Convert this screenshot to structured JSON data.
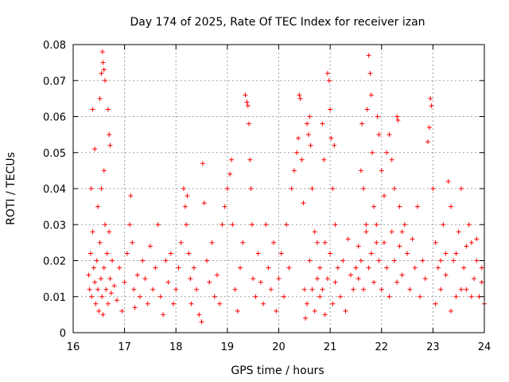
{
  "chart_data": {
    "type": "scatter",
    "title": "Day 174 of 2025, Rate Of TEC Index for receiver izan",
    "xlabel": "GPS time / hours",
    "ylabel": "ROTI / TECUs",
    "xlim": [
      16,
      24
    ],
    "ylim": [
      0,
      0.08
    ],
    "x_ticks": [
      "16",
      "17",
      "18",
      "19",
      "20",
      "21",
      "22",
      "23",
      "24"
    ],
    "y_ticks": [
      "0",
      "0.01",
      "0.02",
      "0.03",
      "0.04",
      "0.05",
      "0.06",
      "0.07",
      "0.08"
    ],
    "grid": true,
    "marker": "+",
    "color": "#ff0000",
    "points": [
      [
        16.35,
        0.04
      ],
      [
        16.38,
        0.062
      ],
      [
        16.42,
        0.051
      ],
      [
        16.48,
        0.035
      ],
      [
        16.52,
        0.065
      ],
      [
        16.55,
        0.072
      ],
      [
        16.57,
        0.078
      ],
      [
        16.58,
        0.075
      ],
      [
        16.6,
        0.073
      ],
      [
        16.62,
        0.07
      ],
      [
        16.68,
        0.062
      ],
      [
        16.7,
        0.055
      ],
      [
        16.72,
        0.052
      ],
      [
        16.55,
        0.04
      ],
      [
        16.6,
        0.045
      ],
      [
        16.3,
        0.016
      ],
      [
        16.32,
        0.012
      ],
      [
        16.34,
        0.022
      ],
      [
        16.36,
        0.01
      ],
      [
        16.38,
        0.028
      ],
      [
        16.4,
        0.018
      ],
      [
        16.42,
        0.014
      ],
      [
        16.44,
        0.008
      ],
      [
        16.46,
        0.02
      ],
      [
        16.48,
        0.012
      ],
      [
        16.5,
        0.006
      ],
      [
        16.52,
        0.025
      ],
      [
        16.54,
        0.015
      ],
      [
        16.56,
        0.01
      ],
      [
        16.58,
        0.005
      ],
      [
        16.6,
        0.018
      ],
      [
        16.62,
        0.03
      ],
      [
        16.64,
        0.012
      ],
      [
        16.66,
        0.022
      ],
      [
        16.68,
        0.008
      ],
      [
        16.7,
        0.028
      ],
      [
        16.72,
        0.015
      ],
      [
        16.74,
        0.011
      ],
      [
        16.76,
        0.02
      ],
      [
        16.8,
        0.013
      ],
      [
        16.85,
        0.009
      ],
      [
        16.9,
        0.018
      ],
      [
        16.95,
        0.006
      ],
      [
        17.0,
        0.014
      ],
      [
        17.05,
        0.022
      ],
      [
        17.1,
        0.03
      ],
      [
        17.12,
        0.038
      ],
      [
        17.15,
        0.025
      ],
      [
        17.18,
        0.012
      ],
      [
        17.2,
        0.007
      ],
      [
        17.25,
        0.016
      ],
      [
        17.3,
        0.01
      ],
      [
        17.35,
        0.02
      ],
      [
        17.4,
        0.015
      ],
      [
        17.45,
        0.008
      ],
      [
        17.5,
        0.024
      ],
      [
        17.55,
        0.012
      ],
      [
        17.6,
        0.018
      ],
      [
        17.65,
        0.03
      ],
      [
        17.7,
        0.01
      ],
      [
        17.75,
        0.005
      ],
      [
        17.8,
        0.02
      ],
      [
        17.85,
        0.014
      ],
      [
        17.9,
        0.022
      ],
      [
        17.95,
        0.008
      ],
      [
        18.0,
        0.012
      ],
      [
        18.05,
        0.018
      ],
      [
        18.1,
        0.025
      ],
      [
        18.15,
        0.04
      ],
      [
        18.18,
        0.035
      ],
      [
        18.2,
        0.03
      ],
      [
        18.22,
        0.038
      ],
      [
        18.25,
        0.022
      ],
      [
        18.28,
        0.015
      ],
      [
        18.3,
        0.008
      ],
      [
        18.35,
        0.018
      ],
      [
        18.4,
        0.012
      ],
      [
        18.45,
        0.005
      ],
      [
        18.5,
        0.003
      ],
      [
        18.55,
        0.036
      ],
      [
        18.52,
        0.047
      ],
      [
        18.6,
        0.02
      ],
      [
        18.65,
        0.014
      ],
      [
        18.7,
        0.025
      ],
      [
        18.75,
        0.01
      ],
      [
        18.8,
        0.016
      ],
      [
        18.85,
        0.008
      ],
      [
        18.9,
        0.03
      ],
      [
        18.95,
        0.035
      ],
      [
        19.0,
        0.04
      ],
      [
        19.05,
        0.044
      ],
      [
        19.08,
        0.048
      ],
      [
        19.1,
        0.03
      ],
      [
        19.15,
        0.012
      ],
      [
        19.2,
        0.006
      ],
      [
        19.25,
        0.018
      ],
      [
        19.3,
        0.025
      ],
      [
        19.35,
        0.066
      ],
      [
        19.38,
        0.064
      ],
      [
        19.4,
        0.063
      ],
      [
        19.42,
        0.058
      ],
      [
        19.44,
        0.048
      ],
      [
        19.46,
        0.04
      ],
      [
        19.48,
        0.03
      ],
      [
        19.5,
        0.015
      ],
      [
        19.55,
        0.01
      ],
      [
        19.6,
        0.022
      ],
      [
        19.65,
        0.014
      ],
      [
        19.7,
        0.008
      ],
      [
        19.75,
        0.03
      ],
      [
        19.8,
        0.018
      ],
      [
        19.85,
        0.012
      ],
      [
        19.9,
        0.025
      ],
      [
        19.95,
        0.006
      ],
      [
        20.0,
        0.015
      ],
      [
        20.05,
        0.022
      ],
      [
        20.1,
        0.01
      ],
      [
        20.15,
        0.03
      ],
      [
        20.2,
        0.018
      ],
      [
        20.25,
        0.04
      ],
      [
        20.3,
        0.045
      ],
      [
        20.35,
        0.05
      ],
      [
        20.38,
        0.054
      ],
      [
        20.4,
        0.066
      ],
      [
        20.42,
        0.065
      ],
      [
        20.45,
        0.048
      ],
      [
        20.48,
        0.036
      ],
      [
        20.5,
        0.012
      ],
      [
        20.55,
        0.058
      ],
      [
        20.58,
        0.055
      ],
      [
        20.6,
        0.06
      ],
      [
        20.62,
        0.052
      ],
      [
        20.65,
        0.04
      ],
      [
        20.7,
        0.028
      ],
      [
        20.75,
        0.015
      ],
      [
        20.8,
        0.01
      ],
      [
        20.85,
        0.058
      ],
      [
        20.88,
        0.048
      ],
      [
        20.9,
        0.025
      ],
      [
        20.95,
        0.072
      ],
      [
        20.98,
        0.07
      ],
      [
        21.0,
        0.062
      ],
      [
        21.02,
        0.054
      ],
      [
        21.05,
        0.04
      ],
      [
        21.08,
        0.052
      ],
      [
        21.1,
        0.03
      ],
      [
        21.15,
        0.018
      ],
      [
        20.52,
        0.004
      ],
      [
        20.55,
        0.008
      ],
      [
        20.6,
        0.02
      ],
      [
        20.65,
        0.012
      ],
      [
        20.7,
        0.006
      ],
      [
        20.75,
        0.025
      ],
      [
        20.8,
        0.018
      ],
      [
        20.85,
        0.012
      ],
      [
        20.9,
        0.005
      ],
      [
        20.95,
        0.015
      ],
      [
        21.0,
        0.022
      ],
      [
        21.05,
        0.008
      ],
      [
        21.1,
        0.014
      ],
      [
        21.2,
        0.01
      ],
      [
        21.25,
        0.02
      ],
      [
        21.3,
        0.006
      ],
      [
        21.35,
        0.026
      ],
      [
        21.4,
        0.016
      ],
      [
        21.45,
        0.012
      ],
      [
        21.5,
        0.018
      ],
      [
        21.55,
        0.024
      ],
      [
        21.6,
        0.045
      ],
      [
        21.62,
        0.058
      ],
      [
        21.65,
        0.04
      ],
      [
        21.7,
        0.03
      ],
      [
        21.72,
        0.062
      ],
      [
        21.75,
        0.077
      ],
      [
        21.78,
        0.072
      ],
      [
        21.8,
        0.066
      ],
      [
        21.82,
        0.05
      ],
      [
        21.85,
        0.035
      ],
      [
        21.9,
        0.025
      ],
      [
        21.92,
        0.06
      ],
      [
        21.95,
        0.055
      ],
      [
        22.0,
        0.045
      ],
      [
        22.05,
        0.038
      ],
      [
        22.1,
        0.05
      ],
      [
        22.15,
        0.055
      ],
      [
        22.2,
        0.048
      ],
      [
        22.25,
        0.04
      ],
      [
        22.3,
        0.06
      ],
      [
        22.32,
        0.059
      ],
      [
        22.35,
        0.035
      ],
      [
        22.4,
        0.028
      ],
      [
        21.55,
        0.015
      ],
      [
        21.6,
        0.02
      ],
      [
        21.65,
        0.012
      ],
      [
        21.7,
        0.028
      ],
      [
        21.75,
        0.018
      ],
      [
        21.8,
        0.022
      ],
      [
        21.85,
        0.014
      ],
      [
        21.9,
        0.03
      ],
      [
        21.95,
        0.02
      ],
      [
        22.0,
        0.012
      ],
      [
        22.05,
        0.025
      ],
      [
        22.1,
        0.018
      ],
      [
        22.15,
        0.01
      ],
      [
        22.2,
        0.028
      ],
      [
        22.25,
        0.02
      ],
      [
        22.3,
        0.014
      ],
      [
        22.35,
        0.024
      ],
      [
        22.4,
        0.016
      ],
      [
        22.45,
        0.03
      ],
      [
        22.5,
        0.022
      ],
      [
        22.55,
        0.012
      ],
      [
        22.6,
        0.026
      ],
      [
        22.65,
        0.018
      ],
      [
        22.7,
        0.035
      ],
      [
        22.75,
        0.01
      ],
      [
        22.8,
        0.02
      ],
      [
        22.85,
        0.015
      ],
      [
        22.9,
        0.053
      ],
      [
        22.93,
        0.057
      ],
      [
        22.95,
        0.065
      ],
      [
        22.97,
        0.063
      ],
      [
        23.0,
        0.04
      ],
      [
        23.05,
        0.025
      ],
      [
        23.1,
        0.018
      ],
      [
        23.15,
        0.012
      ],
      [
        23.2,
        0.03
      ],
      [
        23.25,
        0.022
      ],
      [
        23.3,
        0.042
      ],
      [
        23.35,
        0.035
      ],
      [
        23.4,
        0.02
      ],
      [
        23.45,
        0.01
      ],
      [
        23.5,
        0.028
      ],
      [
        23.55,
        0.04
      ],
      [
        23.6,
        0.018
      ],
      [
        23.65,
        0.012
      ],
      [
        23.7,
        0.03
      ],
      [
        23.75,
        0.025
      ],
      [
        23.8,
        0.015
      ],
      [
        23.85,
        0.02
      ],
      [
        23.9,
        0.01
      ],
      [
        23.95,
        0.018
      ],
      [
        24.0,
        0.008
      ],
      [
        23.05,
        0.008
      ],
      [
        23.15,
        0.02
      ],
      [
        23.25,
        0.016
      ],
      [
        23.35,
        0.006
      ],
      [
        23.45,
        0.022
      ],
      [
        23.55,
        0.012
      ],
      [
        23.65,
        0.024
      ],
      [
        23.75,
        0.01
      ],
      [
        23.85,
        0.026
      ],
      [
        23.95,
        0.014
      ]
    ]
  }
}
